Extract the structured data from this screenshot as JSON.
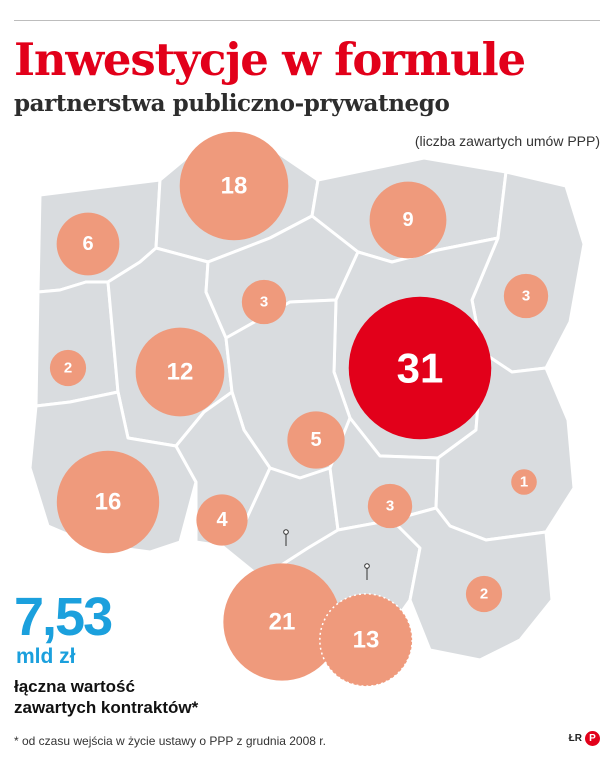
{
  "header": {
    "title": "Inwestycje w formule",
    "subtitle": "partnerstwa publiczno-prywatnego",
    "units_note": "(liczba zawartych umów PPP)"
  },
  "colors": {
    "title": "#e2001a",
    "bubble": "#ef9a7c",
    "bubble_highlight": "#e2001a",
    "region_fill": "#d9dcdf",
    "total_value": "#1ba0dd"
  },
  "map": {
    "regions_count": 16,
    "bubbles": [
      {
        "id": "north-center",
        "value": 18
      },
      {
        "id": "north-east",
        "value": 9
      },
      {
        "id": "north-west",
        "value": 6
      },
      {
        "id": "center-north",
        "value": 3
      },
      {
        "id": "east-north",
        "value": 3
      },
      {
        "id": "west",
        "value": 2
      },
      {
        "id": "center-west",
        "value": 12
      },
      {
        "id": "capital",
        "value": 31,
        "highlight": true
      },
      {
        "id": "center",
        "value": 5
      },
      {
        "id": "east",
        "value": 1
      },
      {
        "id": "south-west",
        "value": 16
      },
      {
        "id": "south-center-west",
        "value": 4
      },
      {
        "id": "south-center",
        "value": 3
      },
      {
        "id": "south-east",
        "value": 2
      },
      {
        "id": "south",
        "value": 21
      },
      {
        "id": "south-2",
        "value": 13
      }
    ]
  },
  "summary": {
    "value": "7,53",
    "unit": "mld zł",
    "description_line1": "łączna wartość",
    "description_line2": "zawartych kontraktów*"
  },
  "footnote": "* od czasu wejścia w życie ustawy o PPP z grudnia 2008 r.",
  "credit": {
    "initials": "ŁR",
    "brand_icon": "dgp-logo-icon",
    "brand_letter": "P"
  }
}
